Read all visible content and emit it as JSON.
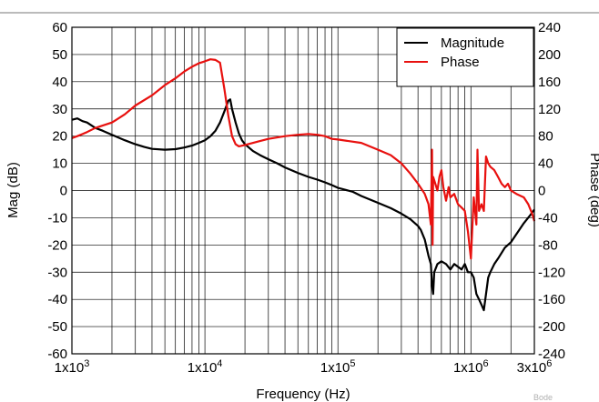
{
  "figure_tag": "Bode",
  "chart_data": {
    "type": "line",
    "title": "",
    "xlabel": "Frequency (Hz)",
    "ylabel_left": "Mag (dB)",
    "ylabel_right": "Phase (deg)",
    "x_scale": "log",
    "xlim": [
      1000,
      3000000
    ],
    "ylim_left": [
      -60,
      60
    ],
    "ylim_right": [
      -240,
      240
    ],
    "grid": true,
    "legend_position": "top-right",
    "x_ticks": [
      {
        "value": 1000,
        "base": "1x10",
        "exp": "3"
      },
      {
        "value": 10000,
        "base": "1x10",
        "exp": "4"
      },
      {
        "value": 100000,
        "base": "1x10",
        "exp": "5"
      },
      {
        "value": 1000000,
        "base": "1x10",
        "exp": "6"
      },
      {
        "value": 3000000,
        "base": "3x10",
        "exp": "6"
      }
    ],
    "y_ticks_left": [
      "60",
      "50",
      "40",
      "30",
      "20",
      "10",
      "0",
      "-10",
      "-20",
      "-30",
      "-40",
      "-50",
      "-60"
    ],
    "y_ticks_right": [
      "240",
      "200",
      "160",
      "120",
      "80",
      "40",
      "0",
      "-40",
      "-80",
      "-120",
      "-160",
      "-200",
      "-240"
    ],
    "series": [
      {
        "name": "Magnitude",
        "color": "#000000",
        "axis": "left",
        "points": [
          [
            1000,
            26
          ],
          [
            1100,
            26.5
          ],
          [
            1200,
            25.5
          ],
          [
            1300,
            25
          ],
          [
            1500,
            23
          ],
          [
            1700,
            22
          ],
          [
            2000,
            20.5
          ],
          [
            2500,
            18.5
          ],
          [
            3000,
            17
          ],
          [
            3500,
            16
          ],
          [
            4000,
            15.3
          ],
          [
            5000,
            15
          ],
          [
            6000,
            15.2
          ],
          [
            7000,
            15.8
          ],
          [
            8000,
            16.5
          ],
          [
            9000,
            17.5
          ],
          [
            10000,
            18.5
          ],
          [
            11000,
            20
          ],
          [
            12000,
            22
          ],
          [
            13000,
            25
          ],
          [
            14000,
            29
          ],
          [
            15000,
            33
          ],
          [
            15500,
            33.5
          ],
          [
            16000,
            30
          ],
          [
            17000,
            25
          ],
          [
            18000,
            21
          ],
          [
            19000,
            18.5
          ],
          [
            20000,
            17
          ],
          [
            23000,
            14.5
          ],
          [
            26000,
            13
          ],
          [
            30000,
            11.5
          ],
          [
            35000,
            10
          ],
          [
            40000,
            8.5
          ],
          [
            50000,
            6.5
          ],
          [
            60000,
            5
          ],
          [
            70000,
            4
          ],
          [
            80000,
            3
          ],
          [
            90000,
            2
          ],
          [
            100000,
            1
          ],
          [
            130000,
            -0.5
          ],
          [
            150000,
            -2
          ],
          [
            200000,
            -4.5
          ],
          [
            250000,
            -6.5
          ],
          [
            300000,
            -8.5
          ],
          [
            350000,
            -10.5
          ],
          [
            400000,
            -13
          ],
          [
            420000,
            -14.5
          ],
          [
            450000,
            -18
          ],
          [
            480000,
            -24
          ],
          [
            500000,
            -27
          ],
          [
            510000,
            -35
          ],
          [
            520000,
            -38
          ],
          [
            530000,
            -30
          ],
          [
            560000,
            -27
          ],
          [
            600000,
            -26
          ],
          [
            650000,
            -27
          ],
          [
            700000,
            -29
          ],
          [
            750000,
            -27
          ],
          [
            800000,
            -28
          ],
          [
            850000,
            -29
          ],
          [
            900000,
            -27
          ],
          [
            950000,
            -30
          ],
          [
            1000000,
            -30
          ],
          [
            1050000,
            -32
          ],
          [
            1100000,
            -38
          ],
          [
            1150000,
            -40
          ],
          [
            1200000,
            -42
          ],
          [
            1250000,
            -44
          ],
          [
            1300000,
            -38
          ],
          [
            1350000,
            -32
          ],
          [
            1400000,
            -30
          ],
          [
            1500000,
            -27
          ],
          [
            1600000,
            -25
          ],
          [
            1800000,
            -21
          ],
          [
            2000000,
            -19
          ],
          [
            2200000,
            -16
          ],
          [
            2500000,
            -12
          ],
          [
            2800000,
            -9
          ],
          [
            3000000,
            -7
          ]
        ]
      },
      {
        "name": "Phase",
        "color": "#e8110f",
        "axis": "right",
        "points": [
          [
            1000,
            77
          ],
          [
            1100,
            80
          ],
          [
            1200,
            83
          ],
          [
            1300,
            86
          ],
          [
            1500,
            92
          ],
          [
            2000,
            100
          ],
          [
            2500,
            112
          ],
          [
            3000,
            125
          ],
          [
            4000,
            140
          ],
          [
            5000,
            155
          ],
          [
            6000,
            165
          ],
          [
            7000,
            175
          ],
          [
            8000,
            182
          ],
          [
            9000,
            187
          ],
          [
            10000,
            190
          ],
          [
            11000,
            193
          ],
          [
            12000,
            192
          ],
          [
            13000,
            188
          ],
          [
            14000,
            150
          ],
          [
            15000,
            110
          ],
          [
            16000,
            80
          ],
          [
            17000,
            68
          ],
          [
            18000,
            65
          ],
          [
            20000,
            67
          ],
          [
            25000,
            72
          ],
          [
            30000,
            76
          ],
          [
            40000,
            80
          ],
          [
            50000,
            82
          ],
          [
            60000,
            83
          ],
          [
            70000,
            82
          ],
          [
            80000,
            80
          ],
          [
            90000,
            76
          ],
          [
            100000,
            75
          ],
          [
            150000,
            70
          ],
          [
            200000,
            60
          ],
          [
            250000,
            52
          ],
          [
            300000,
            40
          ],
          [
            350000,
            25
          ],
          [
            400000,
            10
          ],
          [
            450000,
            -5
          ],
          [
            480000,
            -20
          ],
          [
            500000,
            -50
          ],
          [
            510000,
            60
          ],
          [
            515000,
            -80
          ],
          [
            520000,
            20
          ],
          [
            540000,
            10
          ],
          [
            560000,
            0
          ],
          [
            580000,
            20
          ],
          [
            600000,
            30
          ],
          [
            620000,
            5
          ],
          [
            650000,
            -15
          ],
          [
            680000,
            5
          ],
          [
            700000,
            -10
          ],
          [
            750000,
            -5
          ],
          [
            800000,
            -20
          ],
          [
            850000,
            -25
          ],
          [
            900000,
            -30
          ],
          [
            950000,
            -60
          ],
          [
            1000000,
            -100
          ],
          [
            1050000,
            -10
          ],
          [
            1100000,
            -50
          ],
          [
            1120000,
            60
          ],
          [
            1150000,
            -30
          ],
          [
            1200000,
            -20
          ],
          [
            1250000,
            -30
          ],
          [
            1300000,
            50
          ],
          [
            1350000,
            40
          ],
          [
            1400000,
            35
          ],
          [
            1500000,
            30
          ],
          [
            1600000,
            20
          ],
          [
            1700000,
            10
          ],
          [
            1800000,
            5
          ],
          [
            1900000,
            10
          ],
          [
            2000000,
            0
          ],
          [
            2200000,
            -5
          ],
          [
            2500000,
            -10
          ],
          [
            2700000,
            -20
          ],
          [
            2900000,
            -35
          ],
          [
            3000000,
            -45
          ]
        ]
      }
    ]
  }
}
